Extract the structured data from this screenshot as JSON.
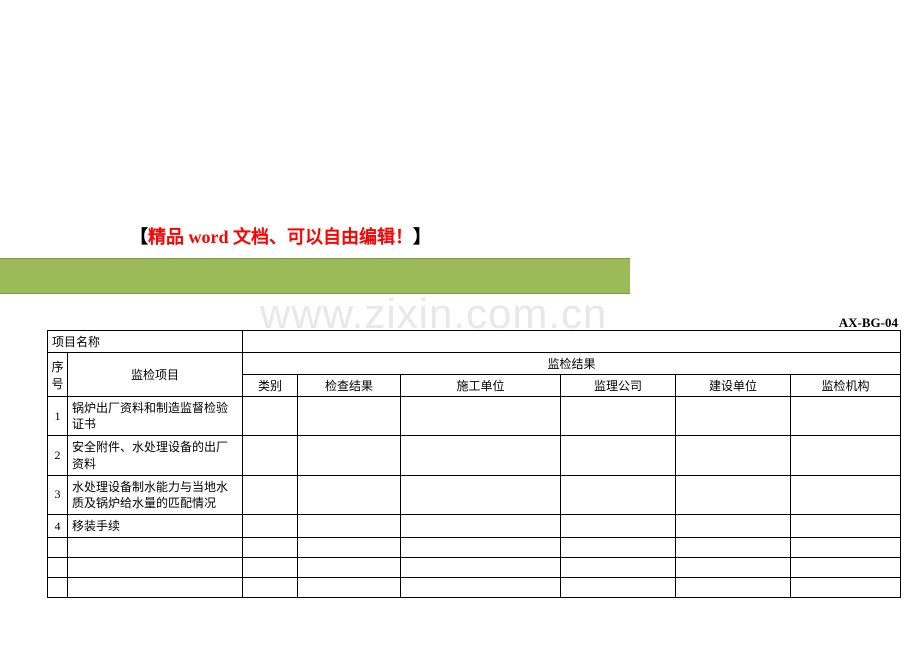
{
  "title": {
    "bracket_left": "【",
    "red_text": "精品 word 文档、可以自由编辑！",
    "bracket_right": "】"
  },
  "watermark": "www.zixin.com.cn",
  "doc_code": "AX-BG-04",
  "table": {
    "project_name_label": "项目名称",
    "headers": {
      "seq": "序号",
      "item": "监检项目",
      "result_group": "监检结果",
      "type": "类别",
      "check_result": "检查结果",
      "construction_unit": "施工单位",
      "supervision_company": "监理公司",
      "build_unit": "建设单位",
      "inspect_org": "监检机构"
    },
    "rows": [
      {
        "seq": "1",
        "item": "锅炉出厂资料和制造监督检验证书"
      },
      {
        "seq": "2",
        "item": "安全附件、水处理设备的出厂资料"
      },
      {
        "seq": "3",
        "item": "水处理设备制水能力与当地水质及锅炉给水量的匹配情况"
      },
      {
        "seq": "4",
        "item": "移装手续"
      }
    ]
  },
  "colors": {
    "green_bar": "#9bbb59",
    "green_border": "#7a9943",
    "red": "#ff0000",
    "black": "#000000",
    "watermark": "#e8e8e8",
    "background": "#ffffff"
  }
}
